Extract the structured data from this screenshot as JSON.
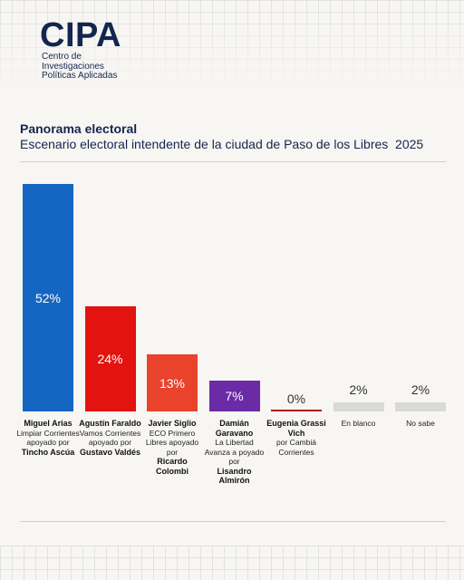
{
  "logo": {
    "name": "CIPA",
    "lines": [
      "Centro de",
      "Investigaciones",
      "Políticas Aplicadas"
    ]
  },
  "chart_data": {
    "type": "bar",
    "title": "Panorama electoral",
    "subtitle": "Escenario electoral intendente de la ciudad de Paso de los Libres  2025",
    "categories": [
      "Miguel Arias",
      "Agustín Faraldo",
      "Javier Siglio",
      "Damián Garavano",
      "Eugenia Grassi Vich",
      "En blanco",
      "No sabe"
    ],
    "details": [
      "Limpiar Corrientes apoyado por",
      "Vamos Corrientes apoyado por",
      "ECO Primero Libres apoyado por",
      "La Libertad Avanza a poyado por",
      "por Cambiá Corrientes",
      null,
      null
    ],
    "backers": [
      "Tincho Ascúa",
      "Gustavo Valdés",
      "Ricardo Colombi",
      "Lisandro Almirón",
      null,
      null,
      null
    ],
    "values": [
      52,
      24,
      13,
      7,
      0,
      2,
      2
    ],
    "value_labels": [
      "52%",
      "24%",
      "13%",
      "7%",
      "0%",
      "2%",
      "2%"
    ],
    "colors": [
      "#1566c2",
      "#e3130f",
      "#ea432b",
      "#6b2aa6",
      "#b3151a",
      "#d9d9d9",
      "#d9d9d9"
    ]
  }
}
